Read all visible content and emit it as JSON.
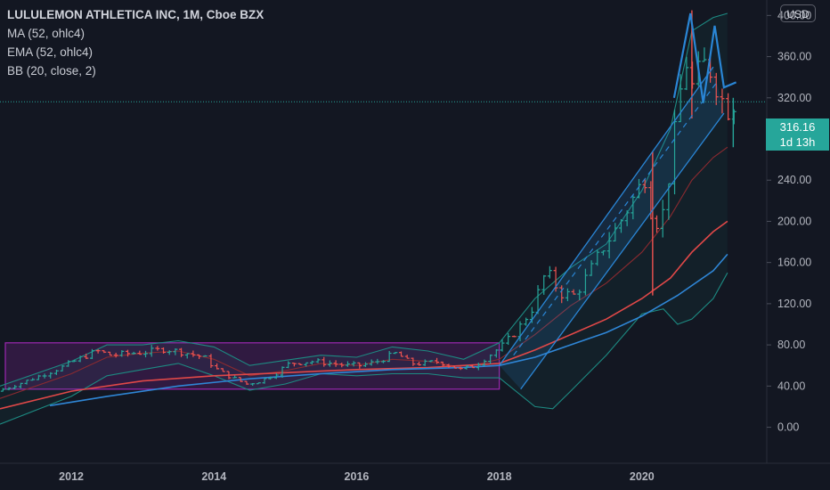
{
  "header": {
    "title": "LULULEMON ATHLETICA INC, 1M, Cboe BZX",
    "indicators": [
      "MA (52, ohlc4)",
      "EMA (52, ohlc4)",
      "BB (20, close, 2)"
    ],
    "currency_button": "USD"
  },
  "last_price": {
    "value": "316.16",
    "countdown": "1d 13h"
  },
  "colors": {
    "background": "#131722",
    "up": "#26a69a",
    "down": "#ef5350",
    "ema": "#e04848",
    "ma": "#2f86d6",
    "bb": "#1d8a82",
    "drawing": "#2a86d6",
    "rectangle": "#9c27b0"
  },
  "chart_data": {
    "type": "candlestick",
    "title": "LULULEMON ATHLETICA INC, 1M, Cboe BZX",
    "y_ticks": [
      "400.00",
      "360.00",
      "320.00",
      "280.00",
      "240.00",
      "200.00",
      "160.00",
      "120.00",
      "80.00",
      "40.00",
      "0.00"
    ],
    "x_ticks": [
      "2012",
      "2014",
      "2016",
      "2018",
      "2020"
    ],
    "ylim": [
      -35,
      415
    ],
    "xlim": [
      2011.0,
      2021.75
    ],
    "grid": false,
    "price_series": [
      [
        2011.0,
        35
      ],
      [
        2011.3,
        42
      ],
      [
        2011.6,
        50
      ],
      [
        2011.9,
        58
      ],
      [
        2012.2,
        68
      ],
      [
        2012.4,
        74
      ],
      [
        2012.6,
        70
      ],
      [
        2012.9,
        72
      ],
      [
        2013.1,
        73
      ],
      [
        2013.35,
        76
      ],
      [
        2013.6,
        73
      ],
      [
        2013.9,
        68
      ],
      [
        2014.1,
        55
      ],
      [
        2014.3,
        48
      ],
      [
        2014.5,
        42
      ],
      [
        2014.7,
        45
      ],
      [
        2014.9,
        52
      ],
      [
        2015.1,
        62
      ],
      [
        2015.4,
        64
      ],
      [
        2015.7,
        62
      ],
      [
        2015.9,
        60
      ],
      [
        2016.1,
        60
      ],
      [
        2016.3,
        63
      ],
      [
        2016.6,
        72
      ],
      [
        2016.8,
        62
      ],
      [
        2017.0,
        62
      ],
      [
        2017.2,
        64
      ],
      [
        2017.5,
        56
      ],
      [
        2017.7,
        60
      ],
      [
        2017.9,
        70
      ],
      [
        2018.1,
        80
      ],
      [
        2018.3,
        95
      ],
      [
        2018.5,
        115
      ],
      [
        2018.7,
        152
      ],
      [
        2018.9,
        130
      ],
      [
        2019.1,
        128
      ],
      [
        2019.3,
        150
      ],
      [
        2019.5,
        175
      ],
      [
        2019.7,
        195
      ],
      [
        2019.9,
        220
      ],
      [
        2020.1,
        245
      ],
      [
        2020.2,
        195
      ],
      [
        2020.35,
        210
      ],
      [
        2020.5,
        285
      ],
      [
        2020.65,
        360
      ],
      [
        2020.75,
        330
      ],
      [
        2020.85,
        345
      ],
      [
        2020.95,
        355
      ],
      [
        2021.05,
        340
      ],
      [
        2021.15,
        320
      ],
      [
        2021.25,
        310
      ],
      [
        2021.3,
        316
      ]
    ],
    "ma_52": [
      [
        2011.7,
        21
      ],
      [
        2012.5,
        30
      ],
      [
        2013.5,
        40
      ],
      [
        2014.5,
        47
      ],
      [
        2015.5,
        52
      ],
      [
        2016.5,
        56
      ],
      [
        2017.5,
        58
      ],
      [
        2018.0,
        60
      ],
      [
        2018.5,
        68
      ],
      [
        2019.0,
        80
      ],
      [
        2019.5,
        92
      ],
      [
        2020.0,
        108
      ],
      [
        2020.5,
        128
      ],
      [
        2021.0,
        152
      ],
      [
        2021.2,
        168
      ]
    ],
    "ema_52": [
      [
        2011.0,
        18
      ],
      [
        2012.0,
        35
      ],
      [
        2013.0,
        45
      ],
      [
        2014.0,
        50
      ],
      [
        2015.0,
        53
      ],
      [
        2016.0,
        56
      ],
      [
        2017.0,
        58
      ],
      [
        2018.0,
        62
      ],
      [
        2018.5,
        75
      ],
      [
        2019.0,
        90
      ],
      [
        2019.5,
        105
      ],
      [
        2020.0,
        125
      ],
      [
        2020.4,
        145
      ],
      [
        2020.7,
        170
      ],
      [
        2021.0,
        190
      ],
      [
        2021.2,
        200
      ]
    ],
    "bb_upper": [
      [
        2011.0,
        40
      ],
      [
        2012.0,
        64
      ],
      [
        2012.5,
        80
      ],
      [
        2013.0,
        80
      ],
      [
        2013.5,
        84
      ],
      [
        2014.0,
        78
      ],
      [
        2014.5,
        60
      ],
      [
        2015.0,
        65
      ],
      [
        2015.5,
        70
      ],
      [
        2016.0,
        68
      ],
      [
        2016.5,
        78
      ],
      [
        2017.0,
        74
      ],
      [
        2017.5,
        66
      ],
      [
        2018.0,
        82
      ],
      [
        2018.5,
        125
      ],
      [
        2019.0,
        155
      ],
      [
        2019.5,
        178
      ],
      [
        2020.0,
        230
      ],
      [
        2020.4,
        290
      ],
      [
        2020.7,
        385
      ],
      [
        2021.0,
        398
      ],
      [
        2021.2,
        402
      ]
    ],
    "bb_middle": [
      [
        2011.0,
        28
      ],
      [
        2012.0,
        52
      ],
      [
        2012.5,
        68
      ],
      [
        2013.0,
        72
      ],
      [
        2013.5,
        74
      ],
      [
        2014.0,
        66
      ],
      [
        2014.5,
        50
      ],
      [
        2015.0,
        55
      ],
      [
        2015.5,
        62
      ],
      [
        2016.0,
        60
      ],
      [
        2016.5,
        66
      ],
      [
        2017.0,
        64
      ],
      [
        2017.5,
        58
      ],
      [
        2018.0,
        66
      ],
      [
        2018.5,
        90
      ],
      [
        2019.0,
        118
      ],
      [
        2019.5,
        140
      ],
      [
        2020.0,
        170
      ],
      [
        2020.4,
        205
      ],
      [
        2020.7,
        240
      ],
      [
        2021.0,
        262
      ],
      [
        2021.2,
        272
      ]
    ],
    "bb_lower": [
      [
        2011.0,
        3
      ],
      [
        2012.0,
        30
      ],
      [
        2012.5,
        50
      ],
      [
        2013.0,
        56
      ],
      [
        2013.5,
        62
      ],
      [
        2014.0,
        50
      ],
      [
        2014.5,
        36
      ],
      [
        2015.0,
        42
      ],
      [
        2015.5,
        52
      ],
      [
        2016.0,
        50
      ],
      [
        2016.5,
        52
      ],
      [
        2017.0,
        52
      ],
      [
        2017.5,
        48
      ],
      [
        2018.0,
        48
      ],
      [
        2018.5,
        20
      ],
      [
        2018.75,
        18
      ],
      [
        2019.0,
        35
      ],
      [
        2019.5,
        70
      ],
      [
        2020.0,
        110
      ],
      [
        2020.3,
        115
      ],
      [
        2020.5,
        100
      ],
      [
        2020.7,
        105
      ],
      [
        2021.0,
        125
      ],
      [
        2021.2,
        150
      ]
    ],
    "drawings": {
      "rectangle": {
        "x": [
          2011.0,
          2018.0
        ],
        "y": [
          37,
          82
        ]
      },
      "channel_upper": [
        [
          2018.0,
          60
        ],
        [
          2021.0,
          350
        ]
      ],
      "channel_lower": [
        [
          2018.3,
          37
        ],
        [
          2021.15,
          305
        ]
      ],
      "channel_mid": [
        [
          2018.2,
          70
        ],
        [
          2021.05,
          335
        ]
      ],
      "double_top": [
        [
          2020.45,
          320
        ],
        [
          2020.68,
          402
        ],
        [
          2020.86,
          315
        ],
        [
          2021.02,
          390
        ],
        [
          2021.15,
          330
        ],
        [
          2021.32,
          335
        ]
      ],
      "last_price_line": 316.16
    }
  }
}
